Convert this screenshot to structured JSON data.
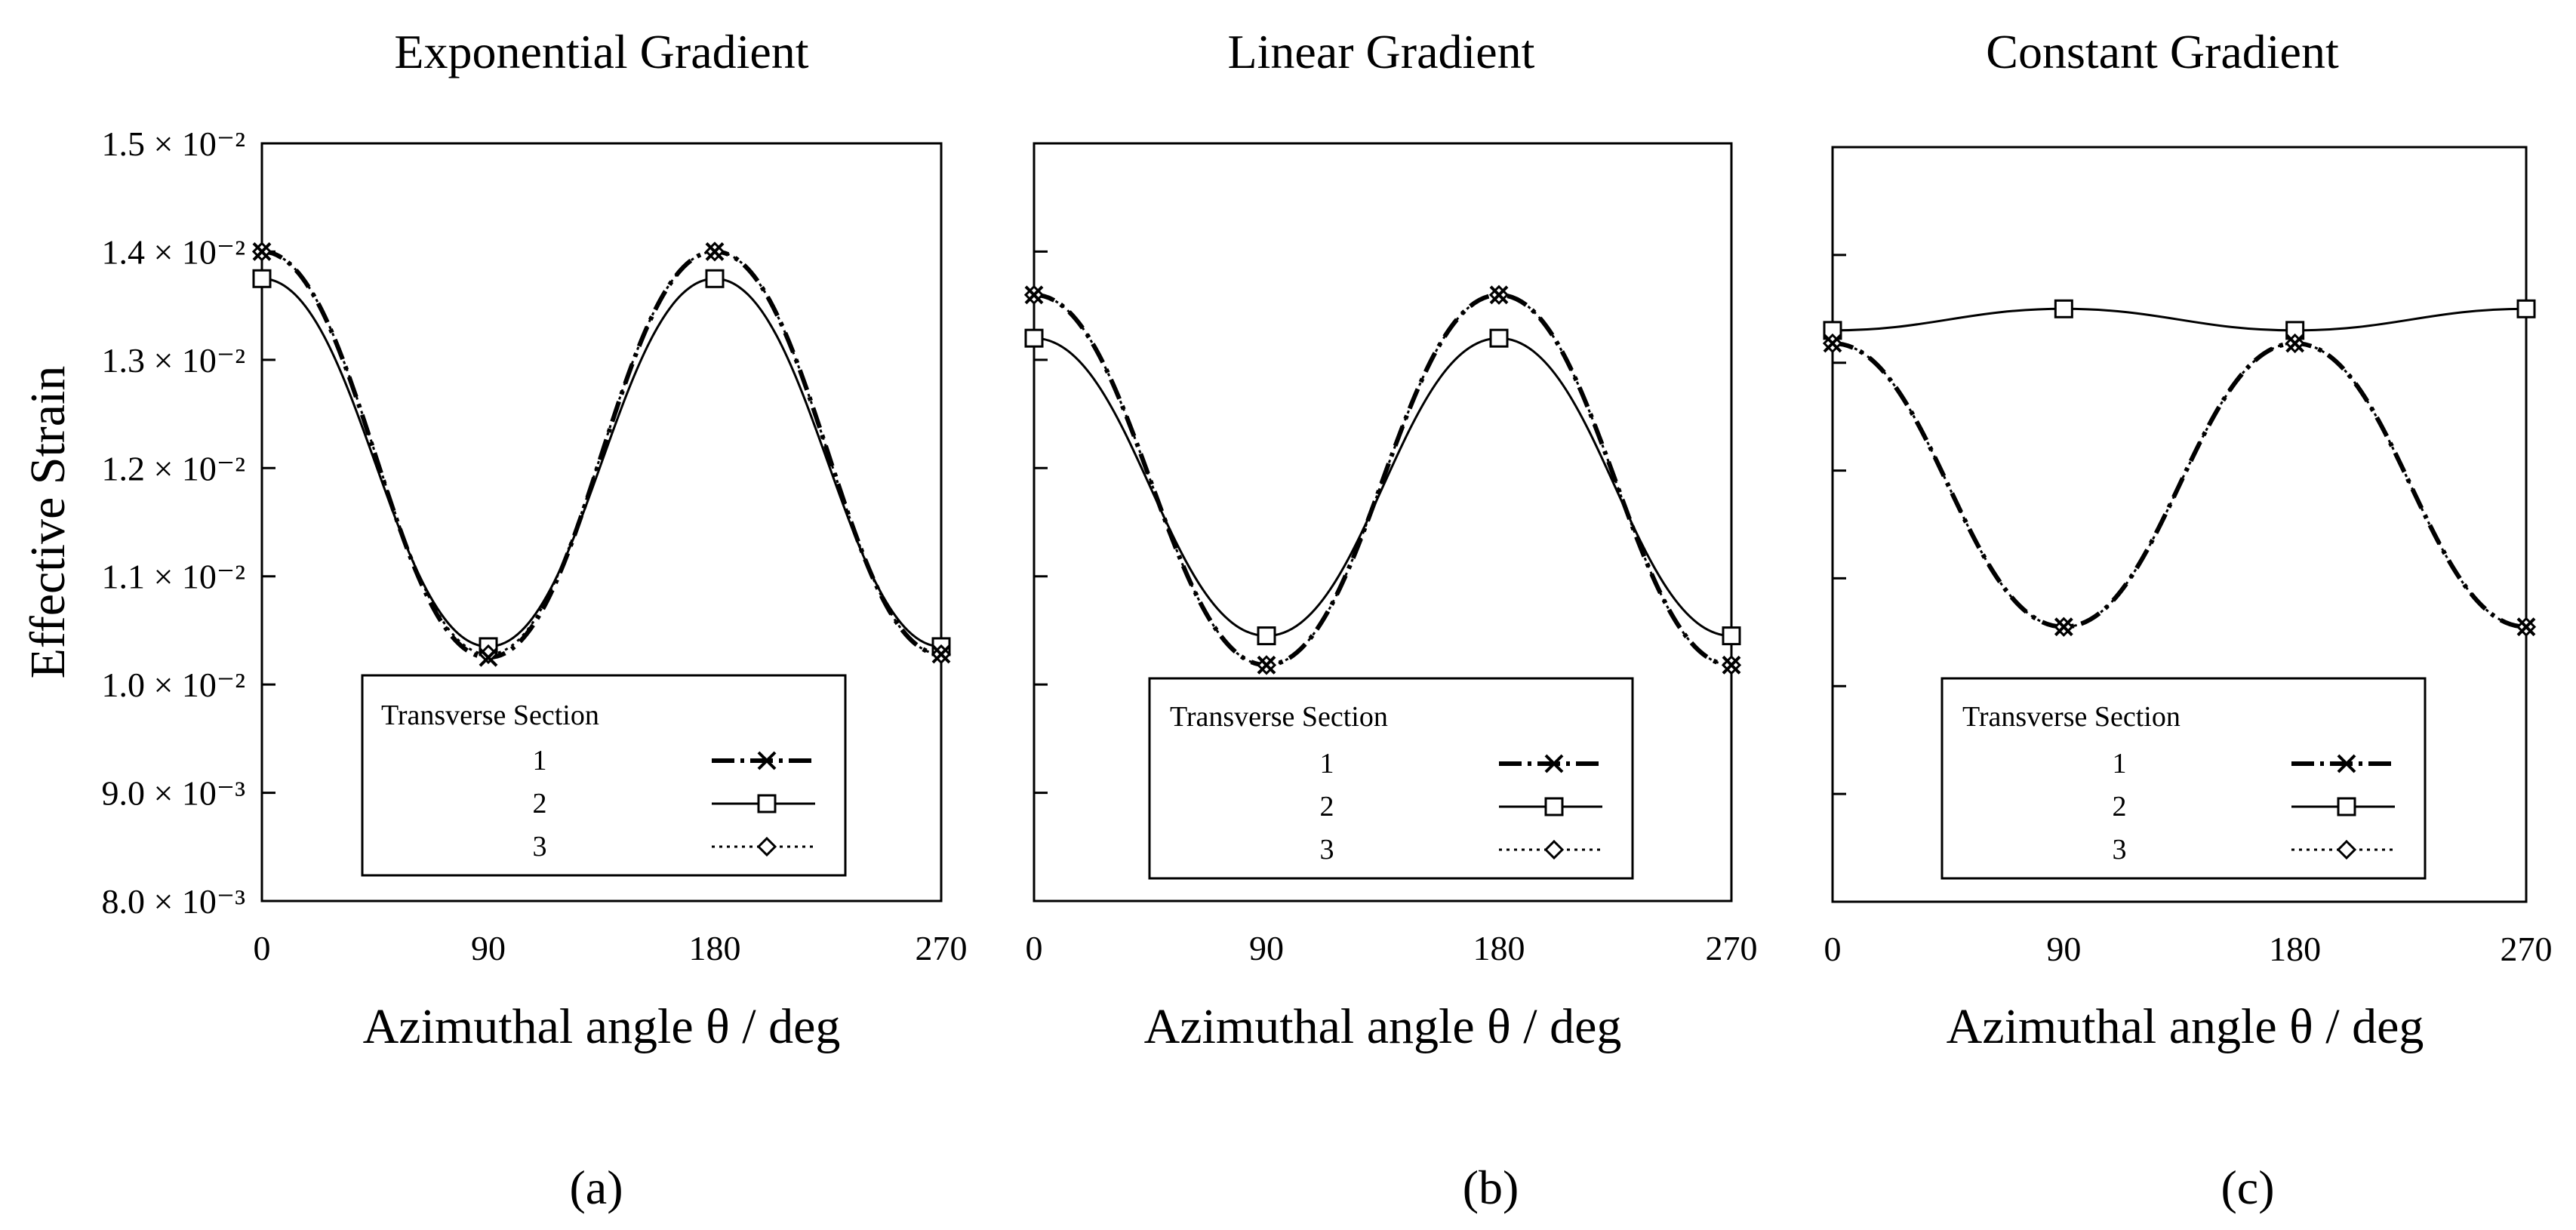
{
  "chart_data": [
    {
      "type": "line",
      "title": "Exponential Gradient",
      "panel_label": "(a)",
      "xlabel": "Azimuthal angle θ / deg",
      "ylabel": "Effective Strain",
      "x": [
        0,
        90,
        180,
        270
      ],
      "xlim": [
        0,
        270
      ],
      "ylim": [
        0.008,
        0.015
      ],
      "yticks": [
        {
          "label": "8.0 × 10⁻³"
        },
        {
          "label": "9.0 × 10⁻³"
        },
        {
          "label": "1.0 × 10⁻²"
        },
        {
          "label": "1.1 × 10⁻²"
        },
        {
          "label": "1.2 × 10⁻²"
        },
        {
          "label": "1.3 × 10⁻²"
        },
        {
          "label": "1.4 × 10⁻²"
        },
        {
          "label": "1.5 × 10⁻²"
        }
      ],
      "xticks": [
        "0",
        "90",
        "180",
        "270"
      ],
      "series": [
        {
          "name": "1",
          "marker": "x",
          "style": "dashdot",
          "values": [
            0.014,
            0.01025,
            0.014,
            0.01028
          ]
        },
        {
          "name": "2",
          "marker": "square",
          "style": "solid",
          "values": [
            0.01375,
            0.01035,
            0.01375,
            0.01035
          ]
        },
        {
          "name": "3",
          "marker": "diamond",
          "style": "dotted",
          "values": [
            0.014,
            0.01028,
            0.014,
            0.01028
          ]
        }
      ],
      "legend": {
        "title": "Transverse Section",
        "placement": "bottom-center"
      }
    },
    {
      "type": "line",
      "title": "Linear Gradient",
      "panel_label": "(b)",
      "xlabel": "Azimuthal angle θ / deg",
      "ylabel": "",
      "x": [
        0,
        90,
        180,
        270
      ],
      "xlim": [
        0,
        270
      ],
      "ylim": [
        0.008,
        0.015
      ],
      "xticks": [
        "0",
        "90",
        "180",
        "270"
      ],
      "series": [
        {
          "name": "1",
          "marker": "x",
          "style": "dashdot",
          "values": [
            0.0136,
            0.01018,
            0.0136,
            0.01018
          ]
        },
        {
          "name": "2",
          "marker": "square",
          "style": "solid",
          "values": [
            0.0132,
            0.01045,
            0.0132,
            0.01045
          ]
        },
        {
          "name": "3",
          "marker": "diamond",
          "style": "dotted",
          "values": [
            0.0136,
            0.01018,
            0.0136,
            0.01018
          ]
        }
      ],
      "legend": {
        "title": "Transverse Section",
        "placement": "bottom-center"
      }
    },
    {
      "type": "line",
      "title": "Constant Gradient",
      "panel_label": "(c)",
      "xlabel": "Azimuthal angle θ / deg",
      "ylabel": "",
      "x": [
        0,
        90,
        180,
        270
      ],
      "xlim": [
        0,
        270
      ],
      "ylim": [
        0.008,
        0.015
      ],
      "xticks": [
        "0",
        "90",
        "180",
        "270"
      ],
      "series": [
        {
          "name": "1",
          "marker": "x",
          "style": "dashdot",
          "values": [
            0.01318,
            0.01055,
            0.01318,
            0.01055
          ]
        },
        {
          "name": "2",
          "marker": "square",
          "style": "solid",
          "values": [
            0.0133,
            0.0135,
            0.0133,
            0.0135
          ]
        },
        {
          "name": "3",
          "marker": "diamond",
          "style": "dotted",
          "values": [
            0.01318,
            0.01055,
            0.01318,
            0.01055
          ]
        }
      ],
      "legend": {
        "title": "Transverse Section",
        "placement": "bottom-center"
      }
    }
  ]
}
